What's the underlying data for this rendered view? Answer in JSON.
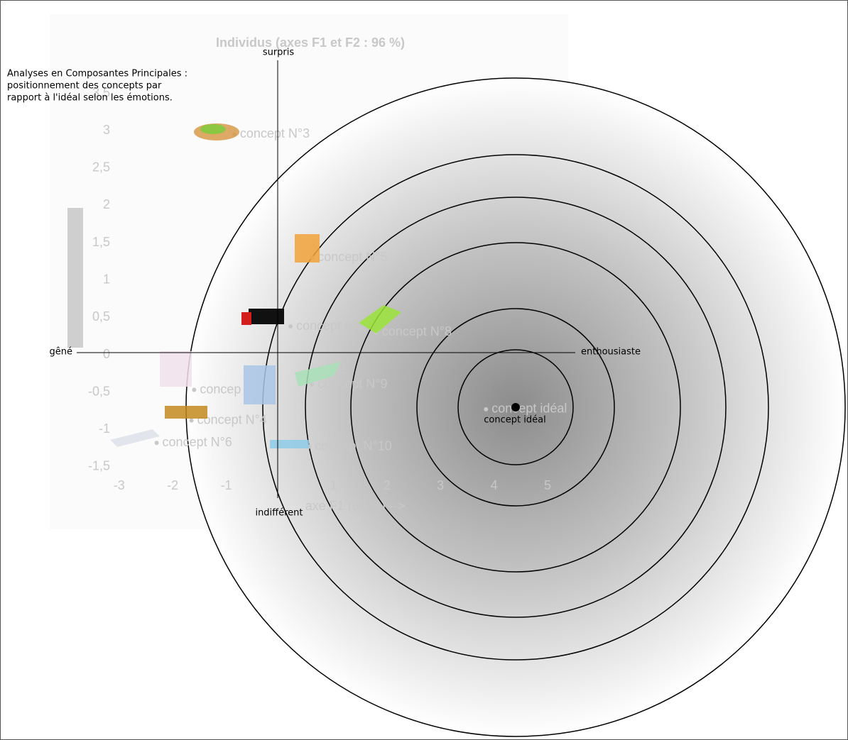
{
  "chart_data": {
    "type": "scatter",
    "title": "Individus (axes F1 et F2 : 96 %)",
    "x_label": "axe F1 (68 %) -->",
    "x": [
      -0.85,
      0.6,
      0.2,
      1.8,
      0.75,
      0.6,
      -1.6,
      -1.65,
      -2.3,
      0.55,
      3.85
    ],
    "values": [
      2.95,
      1.3,
      0.38,
      0.3,
      -0.2,
      -0.4,
      -0.47,
      -0.88,
      -1.18,
      -1.23,
      -0.73
    ],
    "labels": [
      "concept N°3",
      "concept N°5",
      "concept N°2",
      "concept N°8",
      "N°1",
      "concept N°9",
      "concep",
      "concept N°4",
      "concept N°6",
      "concept N°10",
      "concept idéal"
    ],
    "color": "#c8c8c8",
    "xlim": [
      -3.2,
      5.5
    ],
    "ylim": [
      -1.7,
      3.6
    ],
    "xticks": [
      -3,
      -2,
      -1,
      1,
      2,
      3,
      4,
      5
    ],
    "yticks": [
      {
        "value": -1.5,
        "label": "-1,5"
      },
      -1,
      {
        "value": -0.5,
        "label": "-0,5"
      },
      0,
      {
        "value": 0.5,
        "label": "0,5"
      },
      1,
      {
        "value": 1.5,
        "label": "1,5"
      },
      2,
      {
        "value": 2.5,
        "label": "2,5"
      },
      3,
      {
        "value": 3.5,
        "label": "3,5"
      }
    ]
  },
  "overlay": {
    "annotation": [
      "Analyses en Composantes Principales :",
      "positionnement des concepts par",
      "rapport à l'idéal selon les émotions."
    ],
    "axis_labels": {
      "top": "surpris",
      "left": "gêné",
      "right": "enthousiaste",
      "bottom": "indifférent"
    },
    "ideal_label": "concept idéal"
  }
}
